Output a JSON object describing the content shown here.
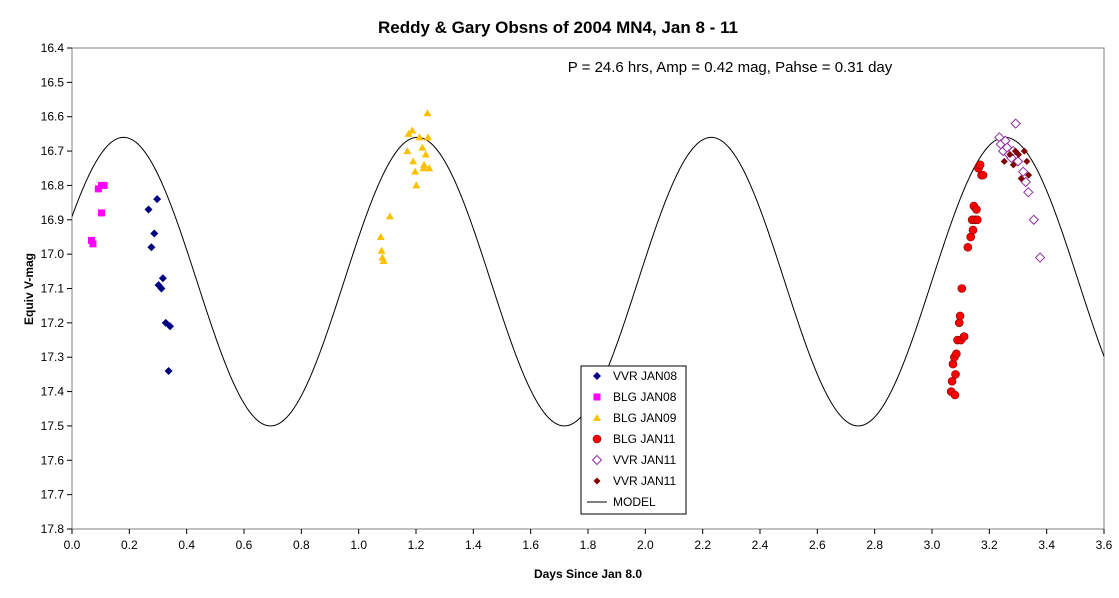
{
  "chart_data": {
    "type": "scatter",
    "title": "Reddy & Gary Obsns of 2004 MN4, Jan 8 - 11",
    "annotation": "P = 24.6 hrs, Amp = 0.42 mag, Pahse = 0.31 day",
    "xlabel": "Days Since Jan 8.0",
    "ylabel": "Equiv V-mag",
    "xlim": [
      0.0,
      3.6
    ],
    "ylim": [
      16.4,
      17.8
    ],
    "y_inverted": true,
    "x_ticks": [
      "0.0",
      "0.2",
      "0.4",
      "0.6",
      "0.8",
      "1.0",
      "1.2",
      "1.4",
      "1.6",
      "1.8",
      "2.0",
      "2.2",
      "2.4",
      "2.6",
      "2.8",
      "3.0",
      "3.2",
      "3.4",
      "3.6"
    ],
    "y_ticks": [
      "16.4",
      "16.5",
      "16.6",
      "16.7",
      "16.8",
      "16.9",
      "17.0",
      "17.1",
      "17.2",
      "17.3",
      "17.4",
      "17.5",
      "17.6",
      "17.7",
      "17.8"
    ],
    "grid": false,
    "legend_position": "bottom-center",
    "model": {
      "name": "MODEL",
      "period_days": 1.025,
      "mean_mag": 17.08,
      "half_amplitude": 0.42,
      "peak_bright_at": 0.18,
      "color": "#000000"
    },
    "series": [
      {
        "name": "VVR JAN08",
        "marker": "diamond",
        "color": "#000080",
        "points": [
          [
            0.267,
            16.87
          ],
          [
            0.277,
            16.98
          ],
          [
            0.287,
            16.94
          ],
          [
            0.297,
            16.84
          ],
          [
            0.302,
            17.09
          ],
          [
            0.312,
            17.1
          ],
          [
            0.317,
            17.07
          ],
          [
            0.327,
            17.2
          ],
          [
            0.342,
            17.21
          ],
          [
            0.337,
            17.34
          ]
        ]
      },
      {
        "name": "BLG JAN08",
        "marker": "square",
        "color": "#ff00ff",
        "points": [
          [
            0.068,
            16.96
          ],
          [
            0.073,
            16.97
          ],
          [
            0.092,
            16.81
          ],
          [
            0.103,
            16.8
          ],
          [
            0.112,
            16.8
          ],
          [
            0.103,
            16.88
          ]
        ]
      },
      {
        "name": "BLG JAN09",
        "marker": "triangle",
        "color": "#ffc000",
        "points": [
          [
            1.077,
            16.95
          ],
          [
            1.08,
            16.99
          ],
          [
            1.083,
            17.01
          ],
          [
            1.087,
            17.02
          ],
          [
            1.109,
            16.89
          ],
          [
            1.17,
            16.7
          ],
          [
            1.174,
            16.65
          ],
          [
            1.187,
            16.64
          ],
          [
            1.19,
            16.73
          ],
          [
            1.197,
            16.76
          ],
          [
            1.201,
            16.8
          ],
          [
            1.212,
            16.66
          ],
          [
            1.222,
            16.69
          ],
          [
            1.226,
            16.75
          ],
          [
            1.234,
            16.71
          ],
          [
            1.24,
            16.59
          ],
          [
            1.242,
            16.66
          ],
          [
            1.246,
            16.75
          ],
          [
            1.228,
            16.74
          ]
        ]
      },
      {
        "name": "BLG JAN11",
        "marker": "circle",
        "color": "#ff0000",
        "points": [
          [
            3.067,
            17.4
          ],
          [
            3.07,
            17.37
          ],
          [
            3.073,
            17.32
          ],
          [
            3.078,
            17.3
          ],
          [
            3.08,
            17.41
          ],
          [
            3.082,
            17.35
          ],
          [
            3.085,
            17.29
          ],
          [
            3.089,
            17.25
          ],
          [
            3.095,
            17.2
          ],
          [
            3.098,
            17.18
          ],
          [
            3.101,
            17.25
          ],
          [
            3.104,
            17.1
          ],
          [
            3.112,
            17.24
          ],
          [
            3.125,
            16.98
          ],
          [
            3.135,
            16.95
          ],
          [
            3.14,
            16.9
          ],
          [
            3.146,
            16.86
          ],
          [
            3.15,
            16.9
          ],
          [
            3.155,
            16.87
          ],
          [
            3.158,
            16.9
          ],
          [
            3.162,
            16.75
          ],
          [
            3.168,
            16.74
          ],
          [
            3.173,
            16.77
          ],
          [
            3.178,
            16.77
          ],
          [
            3.143,
            16.93
          ]
        ]
      },
      {
        "name": "VVR JAN11",
        "marker": "diamond-open",
        "color": "#9030a0",
        "points": [
          [
            3.235,
            16.66
          ],
          [
            3.24,
            16.68
          ],
          [
            3.248,
            16.7
          ],
          [
            3.256,
            16.67
          ],
          [
            3.262,
            16.69
          ],
          [
            3.268,
            16.71
          ],
          [
            3.277,
            16.72
          ],
          [
            3.283,
            16.7
          ],
          [
            3.292,
            16.62
          ],
          [
            3.3,
            16.73
          ],
          [
            3.318,
            16.76
          ],
          [
            3.327,
            16.79
          ],
          [
            3.336,
            16.82
          ],
          [
            3.355,
            16.9
          ],
          [
            3.377,
            17.01
          ]
        ]
      },
      {
        "name": "VVR JAN11",
        "marker": "diamond-small",
        "color": "#800000",
        "points": [
          [
            3.252,
            16.73
          ],
          [
            3.272,
            16.71
          ],
          [
            3.284,
            16.74
          ],
          [
            3.291,
            16.7
          ],
          [
            3.302,
            16.71
          ],
          [
            3.311,
            16.78
          ],
          [
            3.322,
            16.7
          ],
          [
            3.331,
            16.73
          ],
          [
            3.337,
            16.77
          ]
        ]
      }
    ]
  }
}
